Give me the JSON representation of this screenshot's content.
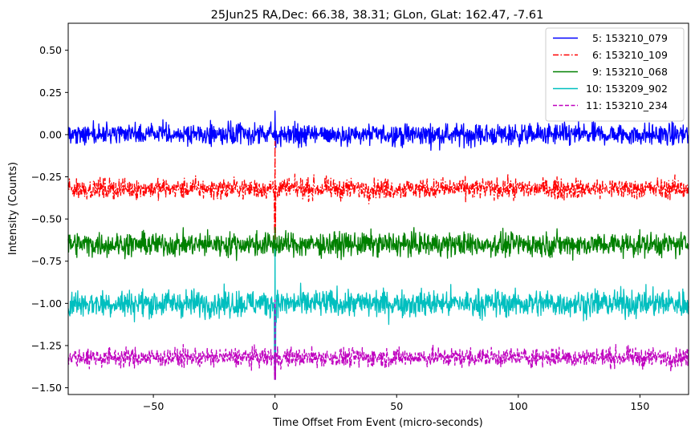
{
  "chart_data": {
    "type": "line",
    "title": "25Jun25 RA,Dec:   66.38,  38.31; GLon, GLat:  162.47,  -7.61",
    "xlabel": "Time Offset From Event (micro-seconds)",
    "ylabel": "Intensity (Counts)",
    "xlim": [
      -85,
      170
    ],
    "ylim": [
      -1.54,
      0.66
    ],
    "xticks": [
      -50,
      0,
      50,
      100,
      150
    ],
    "xtick_labels": [
      "−50",
      "0",
      "50",
      "100",
      "150"
    ],
    "yticks": [
      0.5,
      0.25,
      0.0,
      -0.25,
      -0.5,
      -0.75,
      -1.0,
      -1.25,
      -1.5
    ],
    "ytick_labels": [
      "0.50",
      "0.25",
      "0.00",
      "−0.25",
      "−0.50",
      "−0.75",
      "−1.00",
      "−1.25",
      "−1.50"
    ],
    "grid": false,
    "legend_position": "upper right",
    "event_x": 0,
    "series": [
      {
        "name": "5: 153210_079",
        "label": "  5: 153210_079",
        "color": "#0000ff",
        "style": "solid",
        "baseline": 0.0,
        "noise": 0.032,
        "spike_min": -0.03,
        "spike_max": 0.14
      },
      {
        "name": "6: 153210_109",
        "label": "  6: 153210_109",
        "color": "#ff0000",
        "style": "dashdot",
        "baseline": -0.32,
        "noise": 0.03,
        "spike_min": -0.62,
        "spike_max": -0.04
      },
      {
        "name": "9: 153210_068",
        "label": "  9: 153210_068",
        "color": "#008000",
        "style": "solid",
        "baseline": -0.65,
        "noise": 0.035,
        "spike_min": -0.72,
        "spike_max": -0.55
      },
      {
        "name": "10: 153209_902",
        "label": "10: 153209_902",
        "color": "#00bfbf",
        "style": "solid",
        "baseline": -1.0,
        "noise": 0.04,
        "spike_min": -1.45,
        "spike_max": -0.68
      },
      {
        "name": "11: 153210_234",
        "label": "11: 153210_234",
        "color": "#bf00bf",
        "style": "dashed",
        "baseline": -1.32,
        "noise": 0.028,
        "spike_min": -1.45,
        "spike_max": -0.98
      }
    ]
  }
}
